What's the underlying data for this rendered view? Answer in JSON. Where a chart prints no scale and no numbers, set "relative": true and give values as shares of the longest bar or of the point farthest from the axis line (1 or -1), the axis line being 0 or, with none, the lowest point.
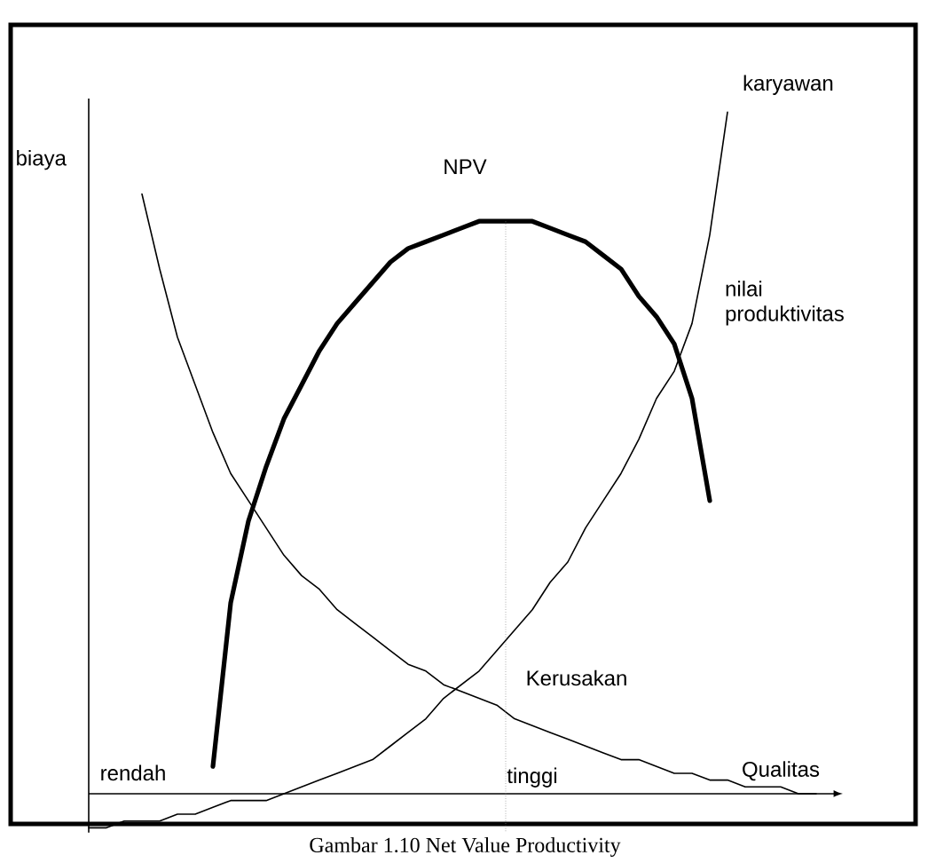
{
  "chart_data": {
    "type": "line",
    "relative": true,
    "xlabel": "Qualitas",
    "ylabel": "biaya",
    "categories": [
      null,
      null,
      null,
      null,
      null,
      null,
      null,
      null,
      null,
      null,
      null,
      null,
      null,
      null,
      null,
      null,
      null,
      null,
      null,
      null,
      null,
      null,
      null,
      null,
      null,
      null,
      null,
      null,
      null,
      null,
      null,
      null,
      null,
      null,
      null,
      null,
      null,
      null,
      null,
      null,
      null,
      null,
      null
    ],
    "series": [
      {
        "name": "NPV",
        "color": "#000000",
        "values": [
          null,
          null,
          null,
          null,
          null,
          null,
          null,
          0.04,
          0.28,
          0.4,
          0.48,
          0.55,
          0.6,
          0.65,
          0.69,
          0.72,
          0.75,
          0.78,
          0.8,
          0.81,
          0.82,
          0.83,
          0.84,
          0.84,
          0.84,
          0.84,
          0.83,
          0.82,
          0.81,
          0.79,
          0.77,
          0.73,
          0.7,
          0.66,
          0.58,
          0.43,
          null,
          null,
          null,
          null,
          null,
          null,
          null
        ]
      },
      {
        "name": "karyawan",
        "color": "#000000",
        "values": [
          -0.05,
          -0.05,
          -0.04,
          -0.04,
          -0.04,
          -0.03,
          -0.03,
          -0.02,
          -0.01,
          -0.01,
          -0.01,
          0,
          0.01,
          0.02,
          0.03,
          0.04,
          0.05,
          0.07,
          0.09,
          0.11,
          0.14,
          0.16,
          0.18,
          0.21,
          0.24,
          0.27,
          0.31,
          0.34,
          0.39,
          0.43,
          0.47,
          0.52,
          0.58,
          0.62,
          0.69,
          0.82,
          1.0,
          null,
          null,
          null,
          null,
          null,
          null
        ]
      },
      {
        "name": "Kerusakan",
        "color": "#000000",
        "values": [
          null,
          null,
          null,
          0.88,
          0.77,
          0.67,
          0.6,
          0.53,
          0.47,
          0.43,
          0.39,
          0.35,
          0.32,
          0.3,
          0.27,
          0.25,
          0.23,
          0.21,
          0.19,
          0.18,
          0.16,
          0.15,
          0.14,
          0.13,
          0.11,
          0.1,
          0.09,
          0.08,
          0.07,
          0.06,
          0.05,
          0.05,
          0.04,
          0.03,
          0.03,
          0.02,
          0.02,
          0.01,
          0.01,
          0.01,
          0.0,
          0.0,
          null
        ]
      }
    ],
    "annotations": [
      "rendah",
      "tinggi",
      "nilai produktivitas",
      "Gambar 1.10 Net Value Productivity"
    ]
  }
}
